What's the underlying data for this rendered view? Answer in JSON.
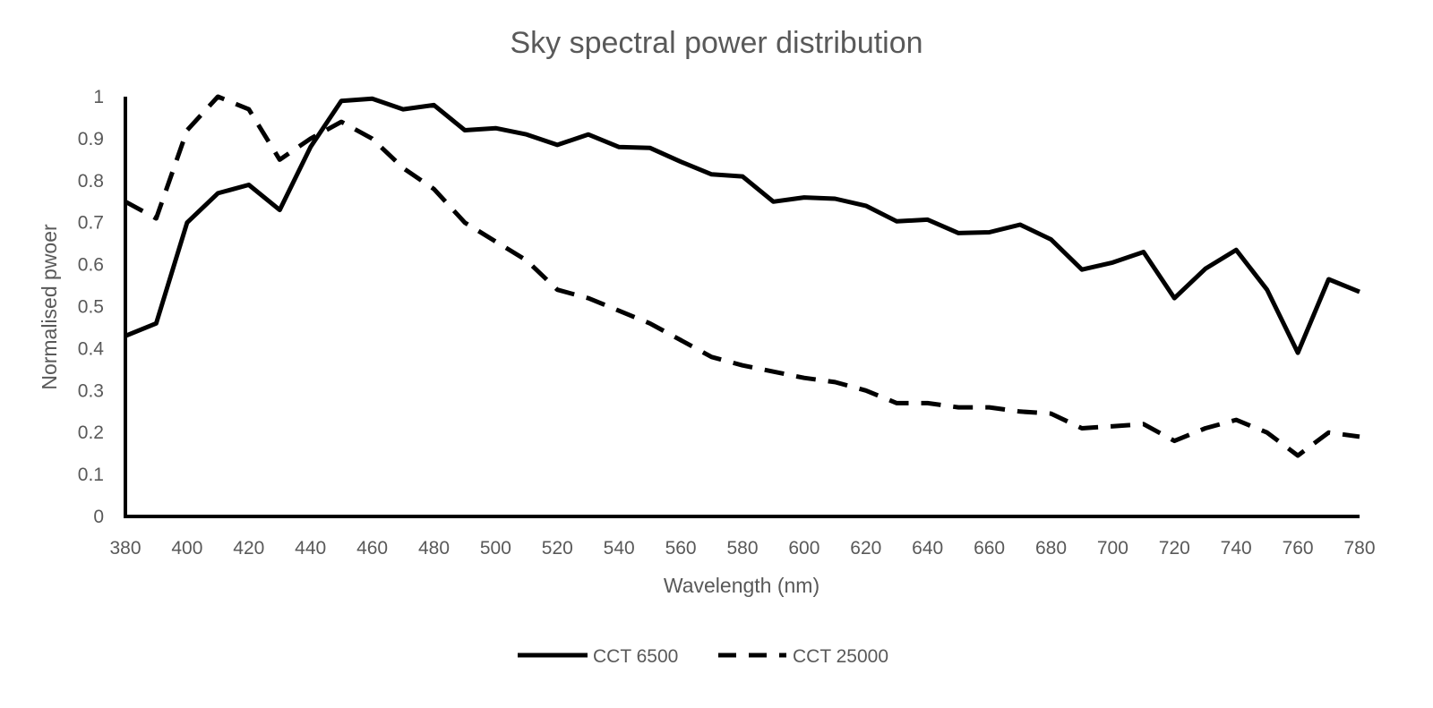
{
  "chart_data": {
    "type": "line",
    "title": "Sky spectral power distribution",
    "xlabel": "Wavelength (nm)",
    "ylabel": "Normalised pwoer",
    "xlim": [
      380,
      780
    ],
    "ylim": [
      0,
      1
    ],
    "x_ticks": [
      "380",
      "400",
      "420",
      "440",
      "460",
      "480",
      "500",
      "520",
      "540",
      "560",
      "580",
      "600",
      "620",
      "640",
      "660",
      "680",
      "700",
      "720",
      "740",
      "760",
      "780"
    ],
    "y_ticks": [
      "0",
      "0.1",
      "0.2",
      "0.3",
      "0.4",
      "0.5",
      "0.6",
      "0.7",
      "0.8",
      "0.9",
      "1"
    ],
    "x": [
      380,
      390,
      400,
      410,
      420,
      430,
      440,
      450,
      460,
      470,
      480,
      490,
      500,
      510,
      520,
      530,
      540,
      550,
      560,
      570,
      580,
      590,
      600,
      610,
      620,
      630,
      640,
      650,
      660,
      670,
      680,
      690,
      700,
      710,
      720,
      730,
      740,
      750,
      760,
      770,
      780
    ],
    "grid": false,
    "legend_position": "bottom",
    "series": [
      {
        "name": "CCT 6500",
        "style": "solid",
        "color": "#000000",
        "values": [
          0.43,
          0.46,
          0.7,
          0.77,
          0.79,
          0.73,
          0.88,
          0.99,
          0.995,
          0.97,
          0.98,
          0.92,
          0.925,
          0.91,
          0.885,
          0.91,
          0.88,
          0.878,
          0.845,
          0.815,
          0.81,
          0.75,
          0.76,
          0.757,
          0.74,
          0.703,
          0.707,
          0.675,
          0.677,
          0.695,
          0.66,
          0.588,
          0.605,
          0.63,
          0.52,
          0.59,
          0.635,
          0.54,
          0.39,
          0.565,
          0.535
        ]
      },
      {
        "name": "CCT 25000",
        "style": "dashed",
        "color": "#000000",
        "values": [
          0.75,
          0.71,
          0.92,
          1.0,
          0.97,
          0.85,
          0.9,
          0.94,
          0.9,
          0.83,
          0.78,
          0.7,
          0.655,
          0.61,
          0.54,
          0.52,
          0.49,
          0.46,
          0.42,
          0.38,
          0.36,
          0.345,
          0.33,
          0.32,
          0.3,
          0.27,
          0.27,
          0.26,
          0.26,
          0.25,
          0.245,
          0.21,
          0.215,
          0.22,
          0.18,
          0.21,
          0.23,
          0.2,
          0.145,
          0.2,
          0.19
        ]
      }
    ]
  }
}
